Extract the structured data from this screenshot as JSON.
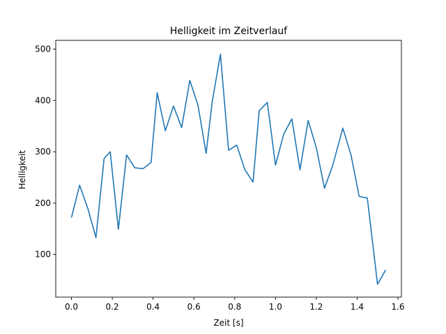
{
  "chart_data": {
    "type": "line",
    "title": "Helligkeit im Zeitverlauf",
    "xlabel": "Zeit [s]",
    "ylabel": "Helligkeit",
    "xlim": [
      -0.077,
      1.617
    ],
    "ylim": [
      17,
      517
    ],
    "xticks": [
      0.0,
      0.2,
      0.4,
      0.6,
      0.8,
      1.0,
      1.2,
      1.4,
      1.6
    ],
    "xtick_labels": [
      "0.0",
      "0.2",
      "0.4",
      "0.6",
      "0.8",
      "1.0",
      "1.2",
      "1.4",
      "1.6"
    ],
    "yticks": [
      100,
      200,
      300,
      400,
      500
    ],
    "ytick_labels": [
      "100",
      "200",
      "300",
      "400",
      "500"
    ],
    "grid": false,
    "series": [
      {
        "color": "#1f77b4",
        "x": [
          0.0,
          0.04,
          0.08,
          0.12,
          0.16,
          0.19,
          0.23,
          0.27,
          0.31,
          0.35,
          0.39,
          0.42,
          0.46,
          0.5,
          0.54,
          0.58,
          0.62,
          0.66,
          0.69,
          0.73,
          0.77,
          0.81,
          0.85,
          0.89,
          0.92,
          0.96,
          1.0,
          1.04,
          1.08,
          1.12,
          1.16,
          1.2,
          1.24,
          1.28,
          1.33,
          1.37,
          1.41,
          1.45,
          1.5,
          1.54
        ],
        "y": [
          172,
          235,
          190,
          133,
          287,
          300,
          149,
          294,
          269,
          267,
          279,
          415,
          341,
          389,
          347,
          439,
          391,
          297,
          398,
          490,
          303,
          313,
          265,
          241,
          380,
          396,
          274,
          334,
          364,
          265,
          361,
          308,
          229,
          273,
          346,
          294,
          213,
          210,
          42,
          70
        ]
      }
    ]
  }
}
